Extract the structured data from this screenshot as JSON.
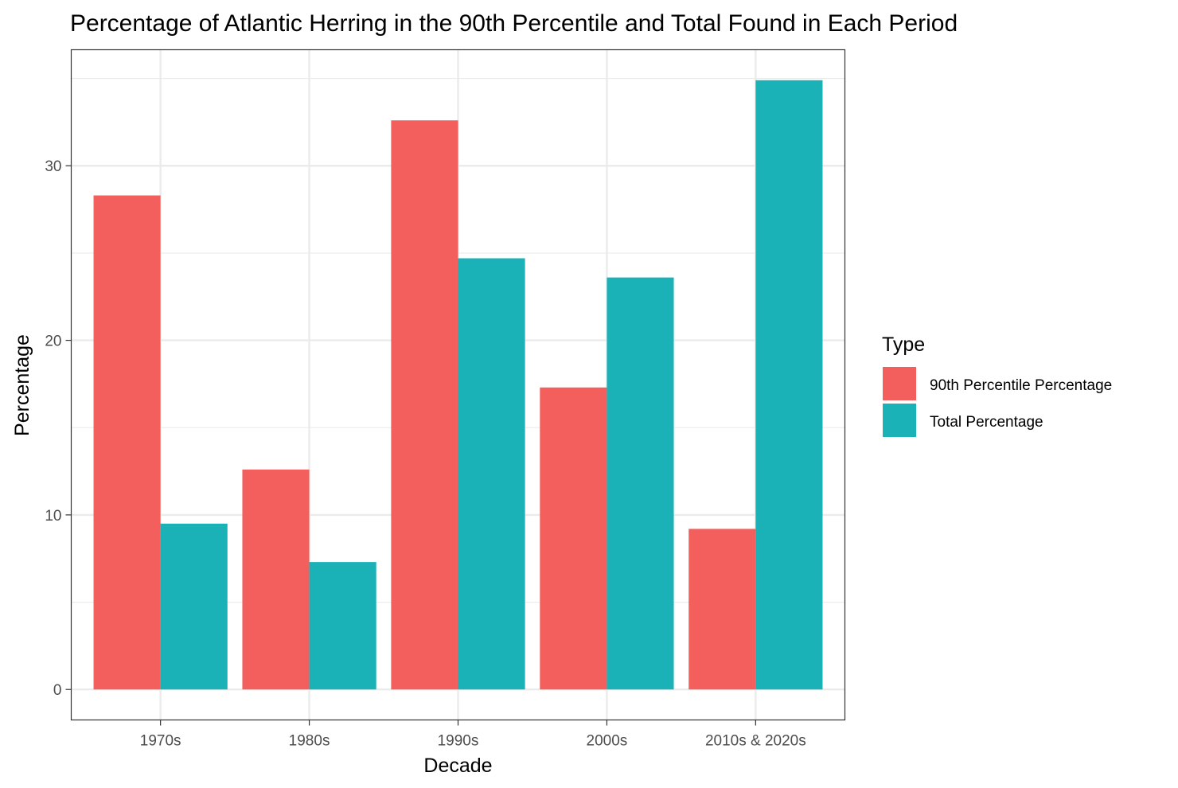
{
  "chart_data": {
    "type": "bar",
    "title": "Percentage of Atlantic Herring in the 90th Percentile and Total Found in Each Period",
    "xlabel": "Decade",
    "ylabel": "Percentage",
    "categories": [
      "1970s",
      "1980s",
      "1990s",
      "2000s",
      "2010s & 2020s"
    ],
    "series": [
      {
        "name": "90th Percentile Percentage",
        "color": "#F25F5C",
        "values": [
          28.3,
          12.6,
          32.6,
          17.3,
          9.2
        ]
      },
      {
        "name": "Total Percentage",
        "color": "#1AB2B7",
        "values": [
          9.5,
          7.3,
          24.7,
          23.6,
          34.9
        ]
      }
    ],
    "ylim": [
      -1.745,
      36.645
    ],
    "yticks": [
      0,
      10,
      20,
      30
    ],
    "grid": true,
    "legend": {
      "title": "Type",
      "position": "right"
    }
  }
}
